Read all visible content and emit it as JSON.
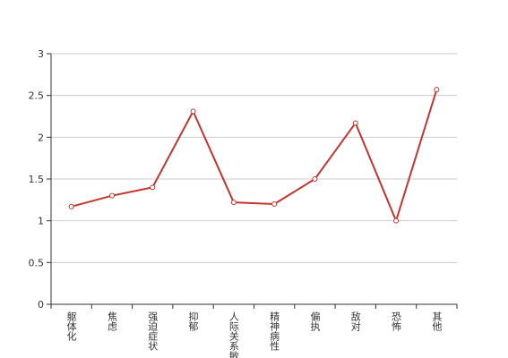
{
  "chart_data": {
    "type": "line",
    "categories": [
      "躯体化",
      "焦虑",
      "强迫症状",
      "抑郁",
      "人际关系敏感",
      "精神病性",
      "偏执",
      "敌对",
      "恐怖",
      "其他"
    ],
    "values": [
      1.17,
      1.3,
      1.4,
      2.31,
      1.22,
      1.2,
      1.5,
      2.17,
      1.0,
      2.57
    ],
    "color": "#c23531",
    "ylim": [
      0,
      3
    ],
    "yticks": [
      0,
      0.5,
      1,
      1.5,
      2,
      2.5,
      3
    ],
    "grid": true
  }
}
